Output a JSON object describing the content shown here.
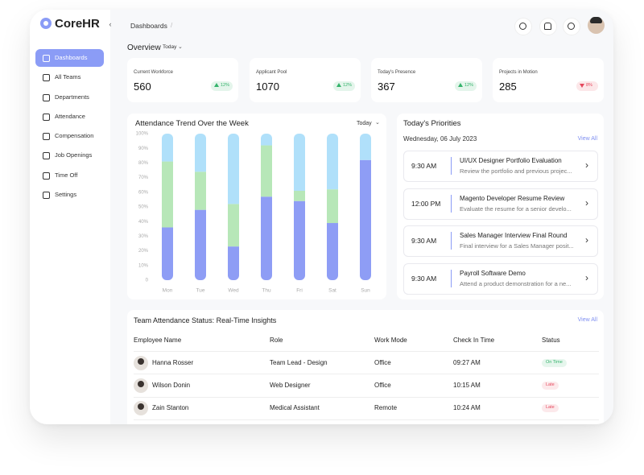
{
  "sidebar": {
    "brand": "CoreHR",
    "nav": [
      "Dashboards",
      "All Teams",
      "Departments",
      "Attendance",
      "Compensation",
      "Job Openings",
      "Time Off",
      "Settings"
    ]
  },
  "header": {
    "breadcrumb": "Dashboards"
  },
  "overview": {
    "title": "Overview",
    "filter": "Today",
    "stats": [
      {
        "label": "Current Workforce",
        "value": 560,
        "change": "12%",
        "trend": "up",
        "color": "#34b36b"
      },
      {
        "label": "Applicant Pool",
        "value": 1070,
        "change": "12%",
        "trend": "up",
        "color": "#34b36b"
      },
      {
        "label": "Today's Presence",
        "value": 367,
        "change": "12%",
        "trend": "up",
        "color": "#34b36b"
      },
      {
        "label": "Projects in Motion",
        "value": 285,
        "change": "8%",
        "trend": "down",
        "color": "#e5485d"
      }
    ]
  },
  "chart_data": {
    "type": "bar",
    "stacked": true,
    "title": "Attendance Trend Over the Week",
    "filter": "Today",
    "categories": [
      "Mon",
      "Tue",
      "Wed",
      "Thu",
      "Fri",
      "Sat",
      "Sun"
    ],
    "series": [
      {
        "color": "#8e9df5",
        "values": [
          36,
          48,
          23,
          57,
          54,
          39,
          82
        ]
      },
      {
        "color": "#b7e7b8",
        "values": [
          45,
          26,
          29,
          35,
          7,
          23,
          0
        ]
      },
      {
        "color": "#b0e0fa",
        "values": [
          19,
          26,
          48,
          8,
          39,
          38,
          18
        ]
      }
    ],
    "ylim": [
      0,
      100
    ],
    "yticks": [
      0,
      {
        "value": 10,
        "label": "10%"
      },
      {
        "value": 20,
        "label": "20%"
      },
      {
        "value": 30,
        "label": "30%"
      },
      {
        "value": 40,
        "label": "40%"
      },
      {
        "value": 50,
        "label": "50%"
      },
      {
        "value": 60,
        "label": "60%"
      },
      {
        "value": 70,
        "label": "70%"
      },
      {
        "value": 80,
        "label": "80%"
      },
      {
        "value": 90,
        "label": "90%"
      },
      {
        "value": 100,
        "label": "100%"
      }
    ],
    "grid": false
  },
  "priorities": {
    "title": "Today's Priorities",
    "date": "Wednesday, 06 July 2023",
    "link": "View All",
    "items": [
      {
        "time": "9:30 AM",
        "title": "UI/UX Designer Portfolio Evaluation",
        "desc": "Review the portfolio and previous projec..."
      },
      {
        "time": "12:00 PM",
        "title": "Magento Developer Resume Review",
        "desc": "Evaluate the resume for a senior develo..."
      },
      {
        "time": "9:30 AM",
        "title": "Sales Manager Interview Final Round",
        "desc": "Final interview for a Sales Manager posit..."
      },
      {
        "time": "9:30 AM",
        "title": "Payroll Software Demo",
        "desc": "Attend a product demonstration for a ne..."
      }
    ]
  },
  "team": {
    "title": "Team Attendance Status: Real-Time Insights",
    "link": "View All",
    "columns": [
      "Employee Name",
      "Role",
      "Work Mode",
      "Check In Time",
      "Status"
    ],
    "rows": [
      {
        "name": "Hanna Rosser",
        "role": "Team Lead - Design",
        "mode": "Office",
        "checkin": "09:27 AM",
        "status": {
          "text": "On Time",
          "color": "#34b36b"
        }
      },
      {
        "name": "Wilson Donin",
        "role": "Web Designer",
        "mode": "Office",
        "checkin": "10:15 AM",
        "status": {
          "text": "Late",
          "color": "#e5485d"
        }
      },
      {
        "name": "Zain Stanton",
        "role": "Medical Assistant",
        "mode": "Remote",
        "checkin": "10:24 AM",
        "status": {
          "text": "Late",
          "color": "#e5485d"
        }
      }
    ]
  }
}
